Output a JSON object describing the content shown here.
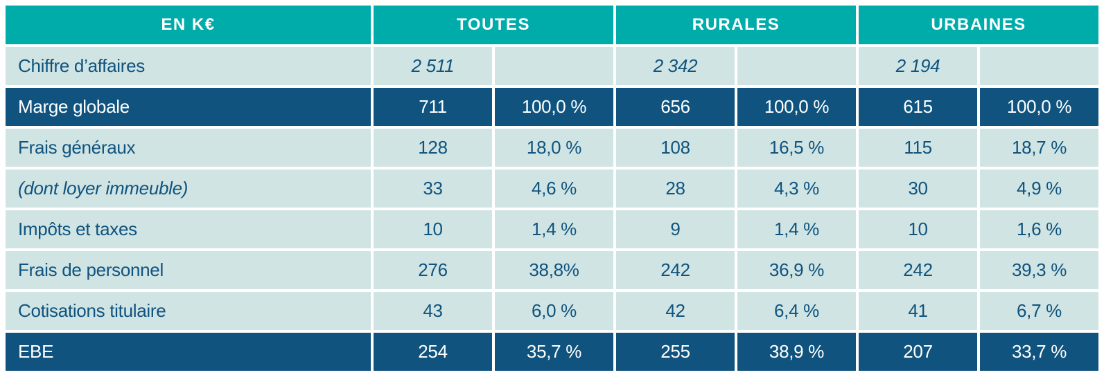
{
  "colors": {
    "teal": "#00ACAA",
    "navy": "#0F537E",
    "light_cell": "#D0E4E3",
    "header_text": "#FFFFFF",
    "body_text": "#0F537E",
    "page_background": "#FFFFFF"
  },
  "table": {
    "unit_header": "EN K€",
    "group_headers": [
      "TOUTES",
      "RURALES",
      "URBAINES"
    ],
    "rows": [
      {
        "label": "Chiffre d’affaires",
        "cells": [
          "2 511",
          "",
          "2 342",
          "",
          "2 194",
          ""
        ]
      },
      {
        "label": "Marge globale",
        "cells": [
          "711",
          "100,0 %",
          "656",
          "100,0 %",
          "615",
          "100,0 %"
        ]
      },
      {
        "label": "Frais généraux",
        "cells": [
          "128",
          "18,0 %",
          "108",
          "16,5 %",
          "115",
          "18,7 %"
        ]
      },
      {
        "label": "(dont loyer immeuble)",
        "cells": [
          "33",
          "4,6 %",
          "28",
          "4,3 %",
          "30",
          "4,9 %"
        ]
      },
      {
        "label": "Impôts et taxes",
        "cells": [
          "10",
          "1,4 %",
          "9",
          "1,4 %",
          "10",
          "1,6 %"
        ]
      },
      {
        "label": "Frais de personnel",
        "cells": [
          "276",
          "38,8%",
          "242",
          "36,9 %",
          "242",
          "39,3 %"
        ]
      },
      {
        "label": "Cotisations titulaire",
        "cells": [
          "43",
          "6,0 %",
          "42",
          "6,4 %",
          "41",
          "6,7 %"
        ]
      },
      {
        "label": "EBE",
        "cells": [
          "254",
          "35,7 %",
          "255",
          "38,9 %",
          "207",
          "33,7 %"
        ]
      }
    ]
  },
  "chart_data": {
    "type": "table",
    "title": "EN K€",
    "column_groups": [
      "TOUTES",
      "RURALES",
      "URBAINES"
    ],
    "subcolumns_per_group": [
      "K€",
      "%"
    ],
    "rows": [
      {
        "label": "Chiffre d’affaires",
        "TOUTES": [
          "2 511",
          null
        ],
        "RURALES": [
          "2 342",
          null
        ],
        "URBAINES": [
          "2 194",
          null
        ]
      },
      {
        "label": "Marge globale",
        "TOUTES": [
          "711",
          "100,0 %"
        ],
        "RURALES": [
          "656",
          "100,0 %"
        ],
        "URBAINES": [
          "615",
          "100,0 %"
        ]
      },
      {
        "label": "Frais généraux",
        "TOUTES": [
          "128",
          "18,0 %"
        ],
        "RURALES": [
          "108",
          "16,5 %"
        ],
        "URBAINES": [
          "115",
          "18,7 %"
        ]
      },
      {
        "label": "(dont loyer immeuble)",
        "TOUTES": [
          "33",
          "4,6 %"
        ],
        "RURALES": [
          "28",
          "4,3 %"
        ],
        "URBAINES": [
          "30",
          "4,9 %"
        ]
      },
      {
        "label": "Impôts et taxes",
        "TOUTES": [
          "10",
          "1,4 %"
        ],
        "RURALES": [
          "9",
          "1,4 %"
        ],
        "URBAINES": [
          "10",
          "1,6 %"
        ]
      },
      {
        "label": "Frais de personnel",
        "TOUTES": [
          "276",
          "38,8%"
        ],
        "RURALES": [
          "242",
          "36,9 %"
        ],
        "URBAINES": [
          "242",
          "39,3 %"
        ]
      },
      {
        "label": "Cotisations titulaire",
        "TOUTES": [
          "43",
          "6,0 %"
        ],
        "RURALES": [
          "42",
          "6,4 %"
        ],
        "URBAINES": [
          "41",
          "6,7 %"
        ]
      },
      {
        "label": "EBE",
        "TOUTES": [
          "254",
          "35,7 %"
        ],
        "RURALES": [
          "255",
          "38,9 %"
        ],
        "URBAINES": [
          "207",
          "33,7 %"
        ]
      }
    ]
  }
}
